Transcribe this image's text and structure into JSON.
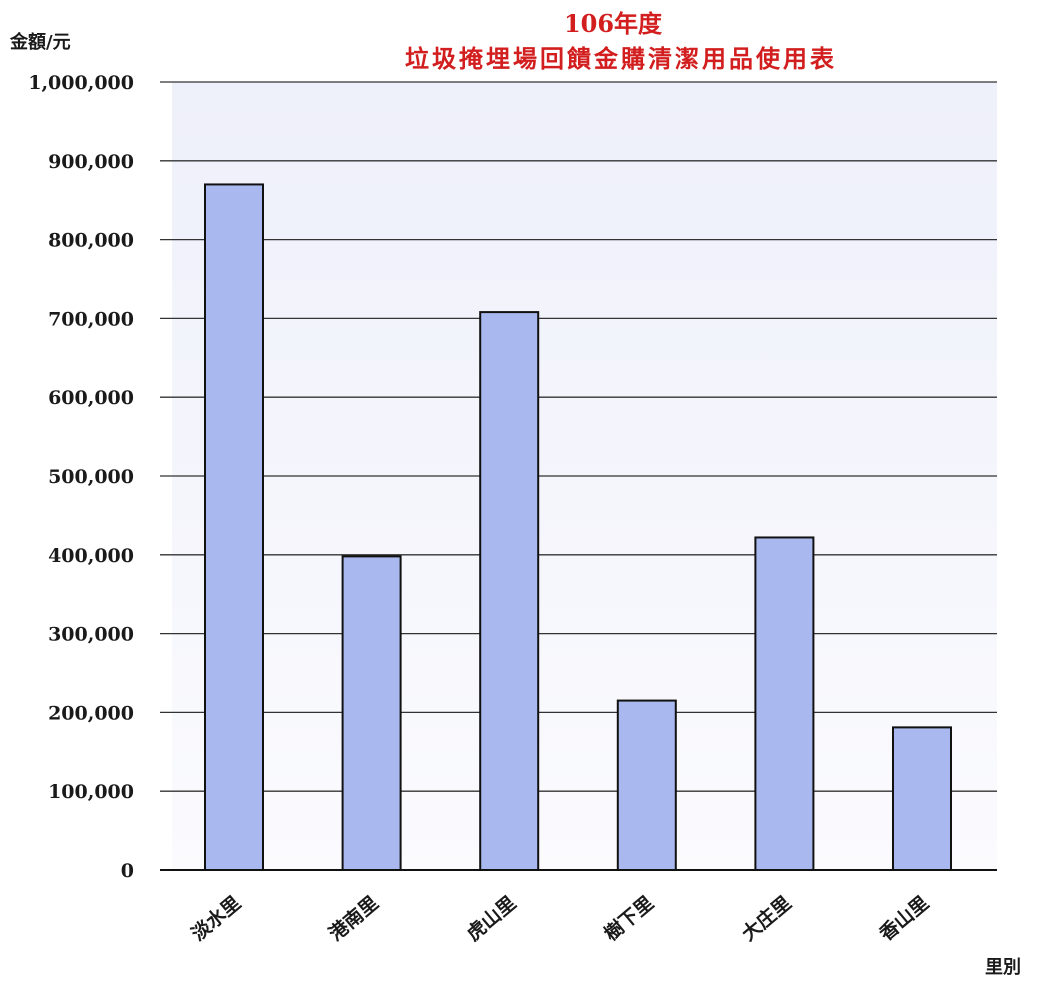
{
  "chart_data": {
    "type": "bar",
    "title": "106年度",
    "subtitle": "垃圾掩埋場回饋金購清潔用品使用表",
    "ylabel": "金額/元",
    "xlabel": "里別",
    "categories": [
      "淡水里",
      "港南里",
      "虎山里",
      "樹下里",
      "大庄里",
      "香山里"
    ],
    "values": [
      870000,
      398000,
      708000,
      215000,
      422000,
      181000
    ],
    "ylim": [
      0,
      1000000
    ],
    "yticks": [
      0,
      100000,
      200000,
      300000,
      400000,
      500000,
      600000,
      700000,
      800000,
      900000,
      1000000
    ],
    "ytick_labels": [
      "0",
      "100,000",
      "200,000",
      "300,000",
      "400,000",
      "500,000",
      "600,000",
      "700,000",
      "800,000",
      "900,000",
      "1,000,000"
    ],
    "grid": true,
    "legend": "none"
  },
  "colors": {
    "title": "#d21e1e",
    "bar_fill": "#a9b8ee",
    "bar_stroke": "#111111",
    "plot_bg_top": "#eef0fa",
    "plot_bg_bottom": "#fbfbfe",
    "gridline": "#333333"
  }
}
